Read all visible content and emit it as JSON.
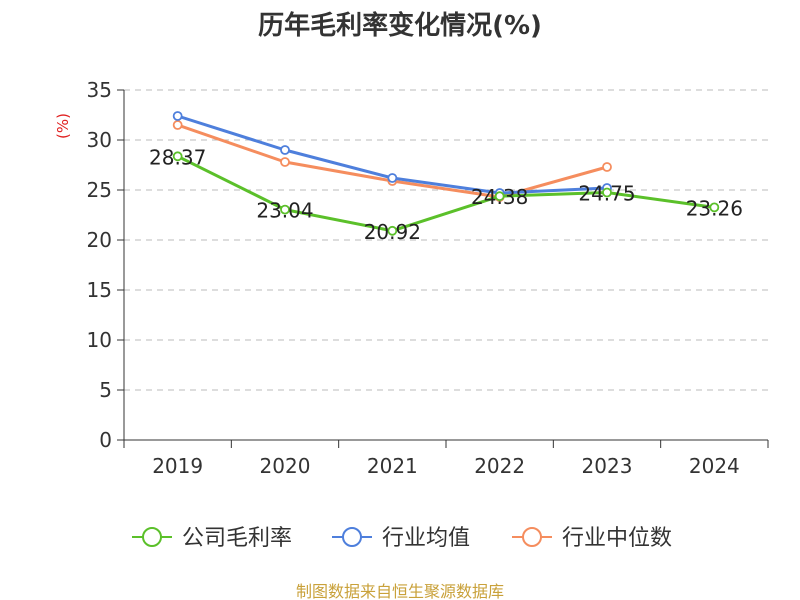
{
  "chart_data": {
    "type": "line",
    "title": "历年毛利率变化情况(%)",
    "ylabel": "(%)",
    "xlabel": "",
    "categories": [
      "2019",
      "2020",
      "2021",
      "2022",
      "2023",
      "2024"
    ],
    "ylim": [
      0,
      35
    ],
    "yticks": [
      0,
      5,
      10,
      15,
      20,
      25,
      30,
      35
    ],
    "grid": true,
    "legend_position": "bottom",
    "series": [
      {
        "name": "公司毛利率",
        "color": "#5bc02a",
        "labeled": true,
        "values": [
          28.37,
          23.04,
          20.92,
          24.38,
          24.75,
          23.26
        ],
        "labels": [
          "28.37",
          "23.04",
          "20.92",
          "24.38",
          "24.75",
          "23.26"
        ]
      },
      {
        "name": "行业均值",
        "color": "#4e7fdc",
        "labeled": false,
        "values": [
          32.4,
          29.0,
          26.2,
          24.7,
          25.2,
          null
        ]
      },
      {
        "name": "行业中位数",
        "color": "#f58d5e",
        "labeled": false,
        "values": [
          31.5,
          27.8,
          25.9,
          24.3,
          27.3,
          null
        ]
      }
    ]
  },
  "source_text": "制图数据来自恒生聚源数据库"
}
